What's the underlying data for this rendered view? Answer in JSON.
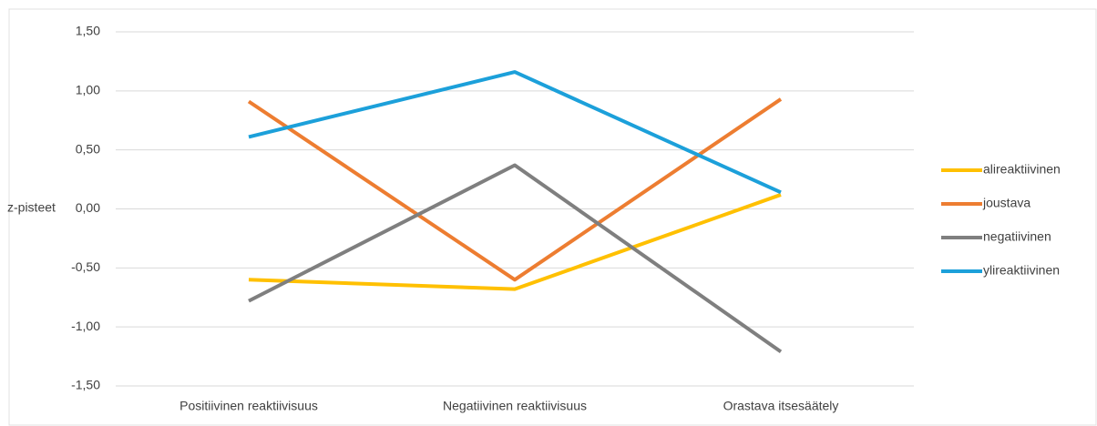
{
  "chart_data": {
    "type": "line",
    "y_label": "z-pisteet",
    "categories": [
      "Positiivinen reaktiivisuus",
      "Negatiivinen reaktiivisuus",
      "Orastava itsesäätely"
    ],
    "series": [
      {
        "name": "alireaktiivinen",
        "color": "#FFC000",
        "values": [
          -0.6,
          -0.68,
          0.12
        ]
      },
      {
        "name": "joustava",
        "color": "#ED7D31",
        "values": [
          0.91,
          -0.6,
          0.93
        ]
      },
      {
        "name": "negatiivinen",
        "color": "#7F7F7F",
        "values": [
          -0.78,
          0.37,
          -1.21
        ]
      },
      {
        "name": "ylireaktiivinen",
        "color": "#1CA0DA",
        "values": [
          0.61,
          1.16,
          0.14
        ]
      }
    ],
    "ylim": [
      -1.5,
      1.5
    ],
    "yticks": [
      {
        "value": -1.5,
        "label": "-1,50"
      },
      {
        "value": -1.0,
        "label": "-1,00"
      },
      {
        "value": -0.5,
        "label": "-0,50"
      },
      {
        "value": 0,
        "label": "0,00"
      },
      {
        "value": 0.5,
        "label": "0,50"
      },
      {
        "value": 1.0,
        "label": "1,00"
      },
      {
        "value": 1.5,
        "label": "1,50"
      }
    ],
    "grid": true,
    "legend": "right"
  }
}
